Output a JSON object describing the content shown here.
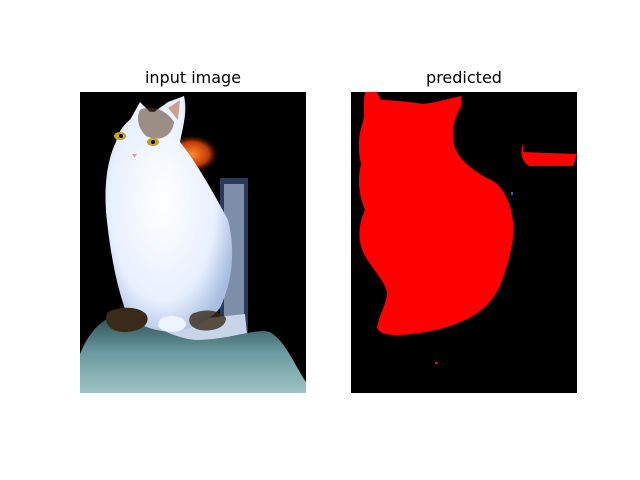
{
  "panels": [
    {
      "title": "input image"
    },
    {
      "title": "predicted"
    }
  ],
  "colors": {
    "background": "#ffffff",
    "image_background": "#000000",
    "mask": "#ff0000",
    "cat_fur": "#eef4ff",
    "blanket": "#6a9aa0",
    "lamp": "#ff6a1a"
  }
}
